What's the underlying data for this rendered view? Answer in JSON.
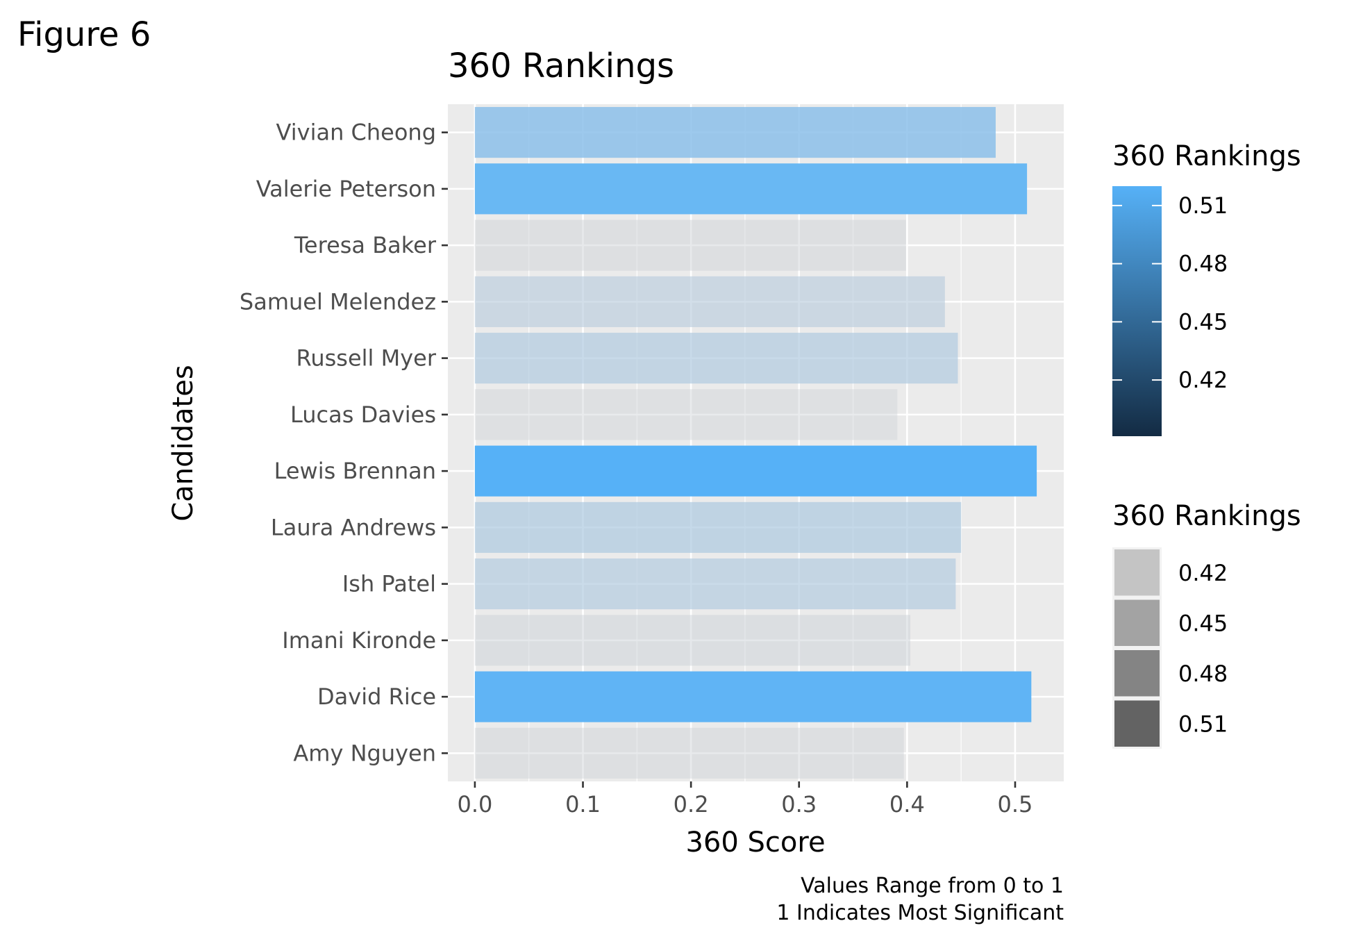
{
  "figure_label": "Figure 6",
  "chart_data": {
    "type": "bar",
    "orientation": "horizontal",
    "title": "360 Rankings",
    "xlabel": "360 Score",
    "ylabel": "Candidates",
    "xlim": [
      -0.025,
      0.545
    ],
    "xticks": [
      0.0,
      0.1,
      0.2,
      0.3,
      0.4,
      0.5
    ],
    "xtick_labels": [
      "0.0",
      "0.1",
      "0.2",
      "0.3",
      "0.4",
      "0.5"
    ],
    "grid": true,
    "categories": [
      "Amy Nguyen",
      "David Rice",
      "Imani Kironde",
      "Ish Patel",
      "Laura Andrews",
      "Lewis Brennan",
      "Lucas Davies",
      "Russell Myer",
      "Samuel Melendez",
      "Teresa Baker",
      "Valerie Peterson",
      "Vivian Cheong"
    ],
    "values": [
      0.397,
      0.515,
      0.403,
      0.445,
      0.45,
      0.52,
      0.391,
      0.447,
      0.435,
      0.399,
      0.511,
      0.482
    ],
    "caption": [
      "Values Range from 0 to 1",
      "1 Indicates Most Significant"
    ],
    "legend_placement": "right",
    "legends": [
      {
        "type": "colorbar",
        "title": "360 Rankings",
        "ticks": [
          0.42,
          0.45,
          0.48,
          0.51
        ],
        "tick_labels": [
          "0.42",
          "0.45",
          "0.48",
          "0.51"
        ],
        "range": [
          0.391,
          0.52
        ],
        "low_color": "#132b43",
        "high_color": "#56b1f7"
      },
      {
        "type": "alpha",
        "title": "360 Rankings",
        "labels": [
          "0.42",
          "0.45",
          "0.48",
          "0.51"
        ],
        "swatch_colors": [
          "#c4c4c4",
          "#a3a3a3",
          "#848484",
          "#636363"
        ]
      }
    ],
    "colors": {
      "panel_background": "#ebebeb",
      "grid_line": "#ffffff",
      "axis_text": "#4d4d4d",
      "tick_mark": "#333333",
      "low_bar": "#cfd2d6",
      "high_bar": "#56b1f7"
    }
  }
}
